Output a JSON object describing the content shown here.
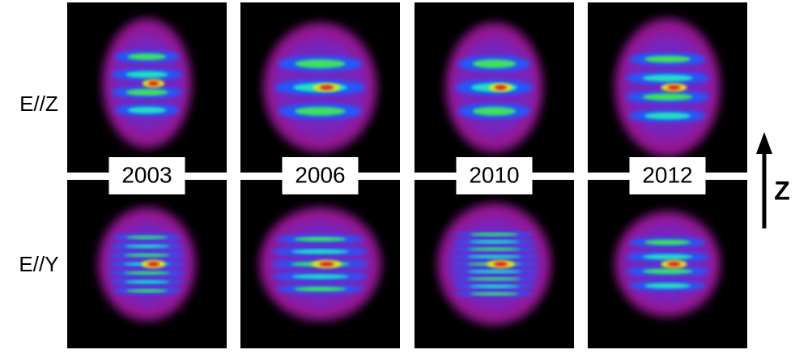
{
  "row_labels": [
    "E//Z",
    "E//Y"
  ],
  "columns": [
    "2003",
    "2006",
    "2010",
    "2012"
  ],
  "axis_label": "Z"
}
